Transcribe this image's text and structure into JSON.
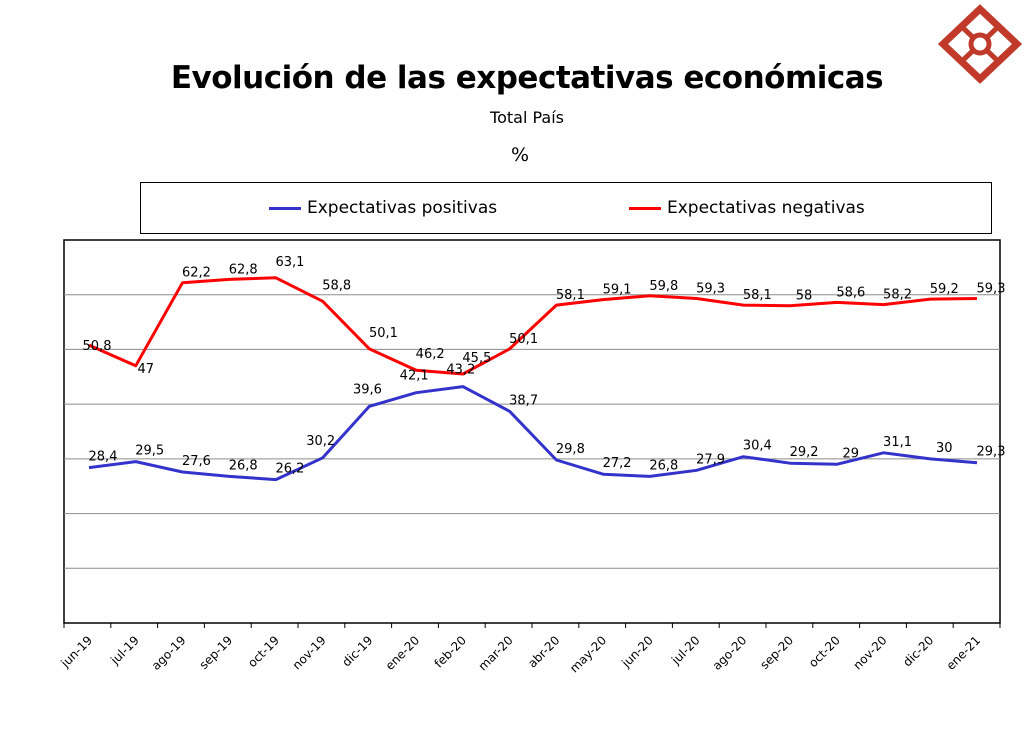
{
  "chart_data": {
    "type": "line",
    "title": "Evolución de las expectativas económicas",
    "subtitle": "Total País",
    "unit": "%",
    "categories": [
      "jun-19",
      "jul-19",
      "ago-19",
      "sep-19",
      "oct-19",
      "nov-19",
      "dic-19",
      "ene-20",
      "feb-20",
      "mar-20",
      "abr-20",
      "may-20",
      "jun-20",
      "jul-20",
      "ago-20",
      "sep-20",
      "oct-20",
      "nov-20",
      "dic-20",
      "ene-21"
    ],
    "series": [
      {
        "name": "Expectativas positivas",
        "color": "#3333cc",
        "values": [
          28.4,
          29.5,
          27.6,
          26.8,
          26.2,
          30.2,
          39.6,
          42.1,
          43.2,
          38.7,
          29.8,
          27.2,
          26.8,
          27.9,
          30.4,
          29.2,
          29,
          31.1,
          30,
          29.3
        ],
        "labels": [
          "28,4",
          "29,5",
          "27,6",
          "26,8",
          "26,2",
          "30,2",
          "39,6",
          "42,1",
          "43,2",
          "38,7",
          "29,8",
          "27,2",
          "26,8",
          "27,9",
          "30,4",
          "29,2",
          "29",
          "31,1",
          "30",
          "29,3"
        ]
      },
      {
        "name": "Expectativas negativas",
        "color": "#ff0000",
        "values": [
          50.8,
          47,
          62.2,
          62.8,
          63.1,
          58.8,
          50.1,
          46.2,
          45.5,
          50.1,
          58.1,
          59.1,
          59.8,
          59.3,
          58.1,
          58,
          58.6,
          58.2,
          59.2,
          59.3
        ],
        "labels": [
          "50,8",
          "47",
          "62,2",
          "62,8",
          "63,1",
          "58,8",
          "50,1",
          "46,2",
          "45,5",
          "50,1",
          "58,1",
          "59,1",
          "59,8",
          "59,3",
          "58,1",
          "58",
          "58,6",
          "58,2",
          "59,2",
          "59,3"
        ]
      }
    ],
    "ylim": [
      0,
      70
    ],
    "grid": true,
    "legend": "top"
  }
}
